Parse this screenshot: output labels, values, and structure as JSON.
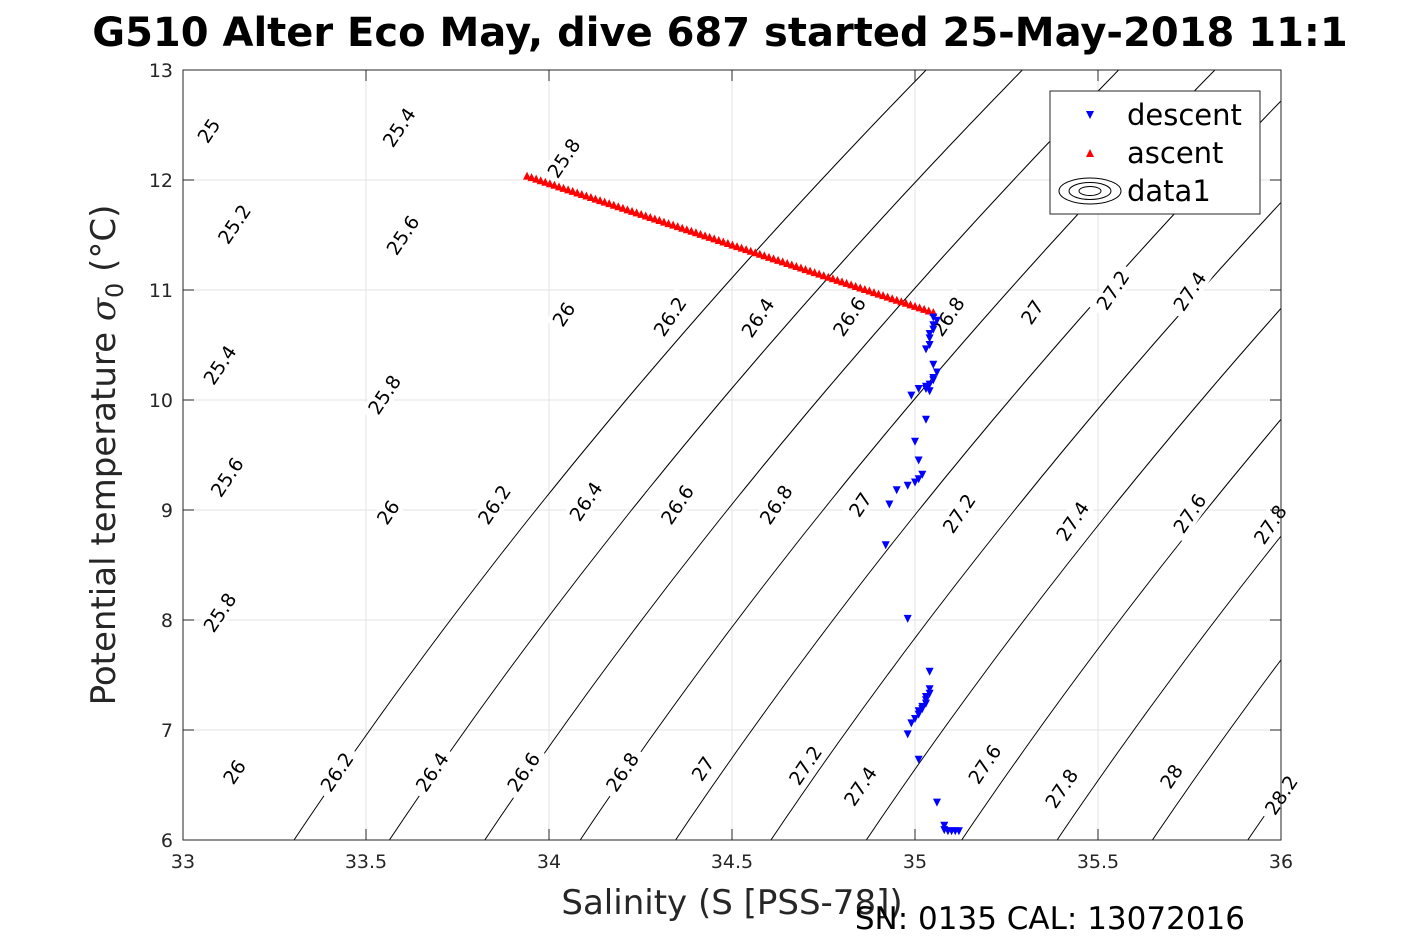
{
  "chart_data": {
    "type": "scatter",
    "title": "G510 Alter Eco May, dive 687 started 25-May-2018 11:1",
    "xlabel": "Salinity (S [PSS-78])",
    "ylabel_main": "Potential temperature ",
    "ylabel_symbol": "σ",
    "ylabel_sub": "0",
    "ylabel_unit": " (°C)",
    "footer": "SN: 0135  CAL: 13072016",
    "xlim": [
      33,
      36
    ],
    "ylim": [
      6,
      13
    ],
    "grid": true,
    "legend_position": "top-right",
    "xticks": [
      33,
      33.5,
      34,
      34.5,
      35,
      35.5,
      36
    ],
    "yticks": [
      6,
      7,
      8,
      9,
      10,
      11,
      12,
      13
    ],
    "contour_levels": [
      24.6,
      24.8,
      25.0,
      25.2,
      25.4,
      25.6,
      25.8,
      26.0,
      26.2,
      26.4,
      26.6,
      26.8,
      27.0,
      27.2,
      27.4,
      27.6,
      27.8,
      28.0,
      28.2
    ],
    "contour_label_strings": [
      "25",
      "25.2",
      "25.4",
      "25.6",
      "25.8",
      "26",
      "26.2",
      "26.4",
      "26.6",
      "26.8",
      "27",
      "27.2",
      "27.4",
      "27.6",
      "27.8",
      "28",
      "28.2"
    ],
    "contour_labels": [
      {
        "text": "25",
        "s": 33.07,
        "t": 12.45
      },
      {
        "text": "25.4",
        "s": 33.59,
        "t": 12.48
      },
      {
        "text": "25.8",
        "s": 34.04,
        "t": 12.2
      },
      {
        "text": "25.2",
        "s": 33.14,
        "t": 11.6
      },
      {
        "text": "25.6",
        "s": 33.6,
        "t": 11.5
      },
      {
        "text": "26",
        "s": 34.04,
        "t": 10.78
      },
      {
        "text": "26.2",
        "s": 34.33,
        "t": 10.76
      },
      {
        "text": "26.4",
        "s": 34.57,
        "t": 10.75
      },
      {
        "text": "26.6",
        "s": 34.82,
        "t": 10.76
      },
      {
        "text": "26.8",
        "s": 35.09,
        "t": 10.76
      },
      {
        "text": "27",
        "s": 35.32,
        "t": 10.8
      },
      {
        "text": "27.2",
        "s": 35.54,
        "t": 11.0
      },
      {
        "text": "27.4",
        "s": 35.75,
        "t": 10.99
      },
      {
        "text": "25.4",
        "s": 33.1,
        "t": 10.32
      },
      {
        "text": "25.8",
        "s": 33.55,
        "t": 10.05
      },
      {
        "text": "25.6",
        "s": 33.12,
        "t": 9.3
      },
      {
        "text": "26",
        "s": 33.56,
        "t": 8.98
      },
      {
        "text": "26.2",
        "s": 33.85,
        "t": 9.05
      },
      {
        "text": "26.4",
        "s": 34.1,
        "t": 9.08
      },
      {
        "text": "26.6",
        "s": 34.35,
        "t": 9.05
      },
      {
        "text": "26.8",
        "s": 34.62,
        "t": 9.05
      },
      {
        "text": "27",
        "s": 34.85,
        "t": 9.05
      },
      {
        "text": "27.2",
        "s": 35.12,
        "t": 8.97
      },
      {
        "text": "27.4",
        "s": 35.43,
        "t": 8.9
      },
      {
        "text": "27.6",
        "s": 35.75,
        "t": 8.97
      },
      {
        "text": "27.8",
        "s": 35.97,
        "t": 8.87
      },
      {
        "text": "25.8",
        "s": 33.1,
        "t": 8.07
      },
      {
        "text": "26",
        "s": 33.14,
        "t": 6.62
      },
      {
        "text": "26.2",
        "s": 33.42,
        "t": 6.62
      },
      {
        "text": "26.4",
        "s": 33.68,
        "t": 6.62
      },
      {
        "text": "26.6",
        "s": 33.93,
        "t": 6.62
      },
      {
        "text": "26.8",
        "s": 34.2,
        "t": 6.62
      },
      {
        "text": "27",
        "s": 34.42,
        "t": 6.65
      },
      {
        "text": "27.2",
        "s": 34.7,
        "t": 6.68
      },
      {
        "text": "27.4",
        "s": 34.85,
        "t": 6.49
      },
      {
        "text": "27.6",
        "s": 35.19,
        "t": 6.69
      },
      {
        "text": "27.8",
        "s": 35.4,
        "t": 6.47
      },
      {
        "text": "28",
        "s": 35.7,
        "t": 6.58
      },
      {
        "text": "28.2",
        "s": 36.0,
        "t": 6.41
      }
    ],
    "series": [
      {
        "name": "descent",
        "color": "#0000ff",
        "marker": "triangle-down",
        "x": [
          35.05,
          35.06,
          35.05,
          35.05,
          35.04,
          35.04,
          35.04,
          35.03,
          35.05,
          35.06,
          35.05,
          35.05,
          35.04,
          35.03,
          35.04,
          35.03,
          35.01,
          34.99,
          35.03,
          35.0,
          35.01,
          35.02,
          35.01,
          35.0,
          34.98,
          34.95,
          34.93,
          34.92,
          34.98,
          35.04,
          35.04,
          35.04,
          35.03,
          35.03,
          35.03,
          35.02,
          35.02,
          35.01,
          35.01,
          35.0,
          34.99,
          34.98,
          35.01,
          35.06,
          35.08,
          35.08,
          35.09,
          35.1,
          35.11,
          35.12
        ],
        "y": [
          10.75,
          10.72,
          10.68,
          10.64,
          10.6,
          10.56,
          10.5,
          10.46,
          10.32,
          10.25,
          10.2,
          10.18,
          10.14,
          10.12,
          10.08,
          10.1,
          10.1,
          10.04,
          9.82,
          9.62,
          9.45,
          9.32,
          9.28,
          9.25,
          9.22,
          9.18,
          9.05,
          8.68,
          8.01,
          7.53,
          7.37,
          7.33,
          7.3,
          7.27,
          7.24,
          7.21,
          7.19,
          7.17,
          7.14,
          7.1,
          7.06,
          6.96,
          6.73,
          6.34,
          6.13,
          6.09,
          6.08,
          6.08,
          6.08,
          6.08
        ]
      },
      {
        "name": "ascent",
        "color": "#ff0000",
        "marker": "triangle-up",
        "x": [
          33.94,
          35.05
        ],
        "y": [
          12.04,
          10.8
        ],
        "count": 90
      },
      {
        "name": "data1",
        "color": "#000000",
        "marker": "contour"
      }
    ]
  }
}
